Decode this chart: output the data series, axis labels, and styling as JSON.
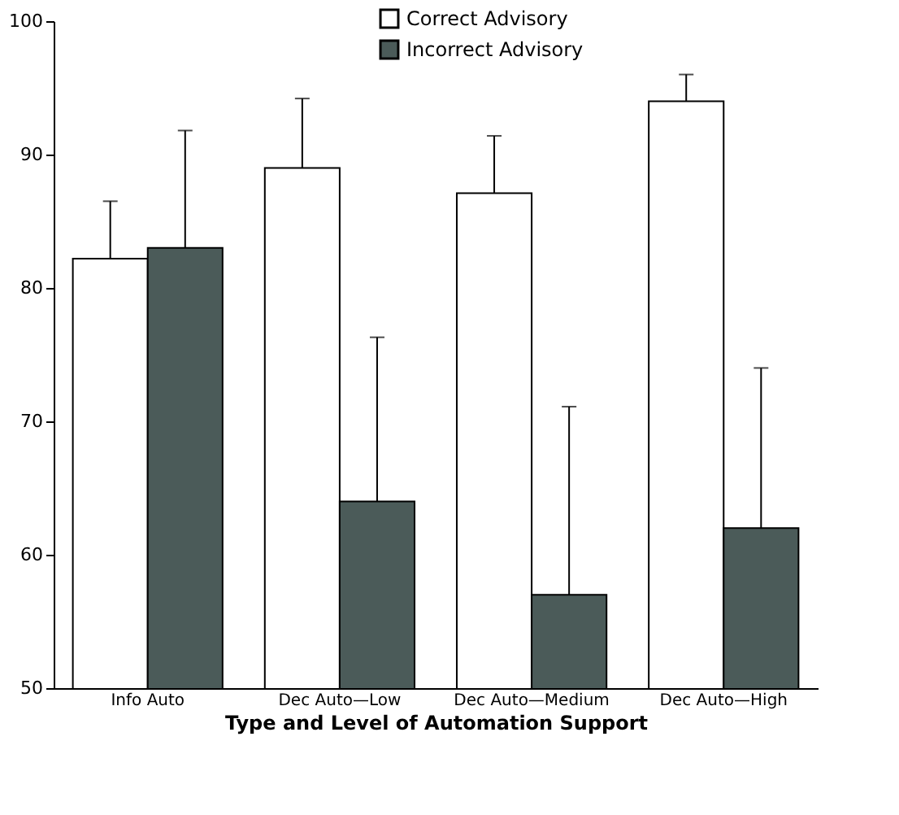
{
  "chart_data": {
    "type": "bar",
    "xlabel": "Type and Level of Automation Support",
    "categories": [
      "Info Auto",
      "Dec Auto—Low",
      "Dec Auto—Medium",
      "Dec Auto—High"
    ],
    "series": [
      {
        "name": "Correct Advisory",
        "color": "#ffffff",
        "values": [
          82.2,
          89,
          87.1,
          94
        ],
        "errors": [
          [
            82.2,
            86.5
          ],
          [
            89,
            94.2
          ],
          [
            87.1,
            91.4
          ],
          [
            94,
            96
          ]
        ]
      },
      {
        "name": "Incorrect Advisory",
        "color": "#4b5b59",
        "values": [
          83,
          64,
          57,
          62
        ],
        "errors": [
          [
            83,
            91.8
          ],
          [
            64,
            76.3
          ],
          [
            57,
            71.1
          ],
          [
            62,
            74
          ]
        ]
      }
    ],
    "ylim": [
      50,
      100
    ],
    "yticks": [
      50,
      60,
      70,
      80,
      90,
      100
    ],
    "grid": false,
    "legend": "top"
  }
}
